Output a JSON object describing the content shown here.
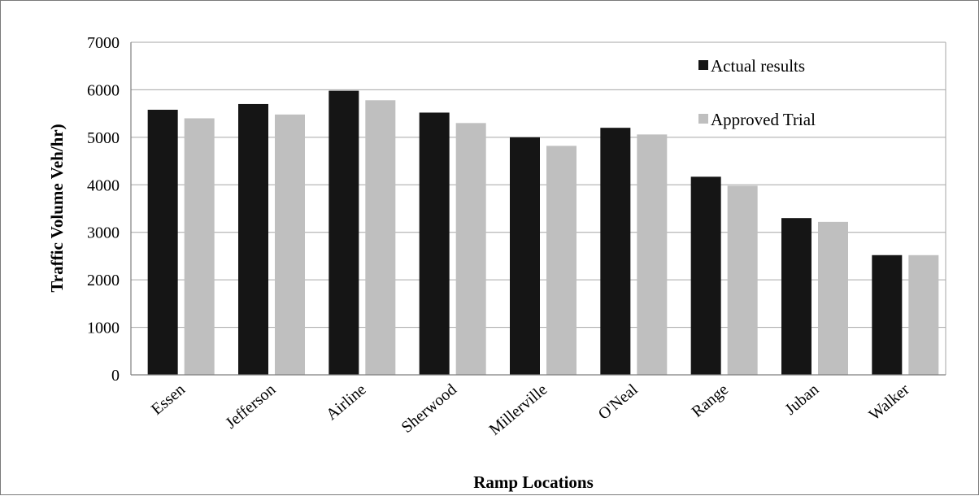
{
  "chart_data": {
    "type": "bar",
    "categories": [
      "Essen",
      "Jefferson",
      "Airline",
      "Sherwood",
      "Millerville",
      "O'Neal",
      "Range",
      "Juban",
      "Walker"
    ],
    "series": [
      {
        "name": "Actual results",
        "color": "#151515",
        "values": [
          5580,
          5700,
          5980,
          5520,
          5000,
          5200,
          4170,
          3300,
          2520
        ]
      },
      {
        "name": "Approved Trial",
        "color": "#bfbfbf",
        "values": [
          5400,
          5480,
          5780,
          5300,
          4820,
          5060,
          3980,
          3220,
          2520
        ]
      }
    ],
    "title": "",
    "xlabel": "Ramp Locations",
    "ylabel": "Traffic Volume  Veh/hr)",
    "ylim": [
      0,
      7000
    ],
    "yticks": [
      "0",
      "1000",
      "2000",
      "3000",
      "4000",
      "5000",
      "6000",
      "7000"
    ],
    "grid": true,
    "legend_position": "top-right"
  }
}
